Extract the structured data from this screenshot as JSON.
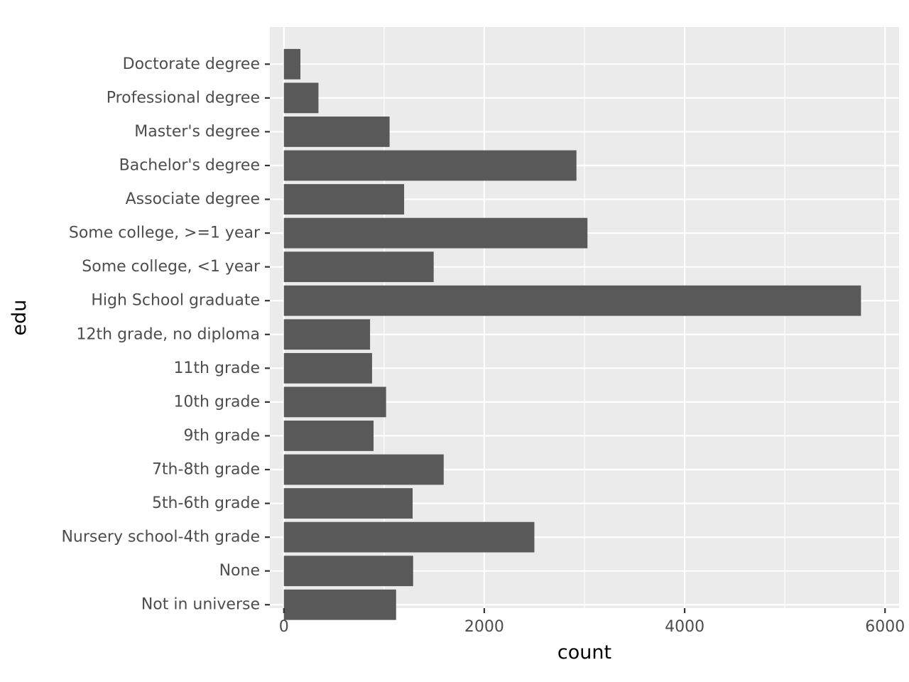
{
  "chart_data": {
    "type": "bar",
    "orientation": "horizontal",
    "title": "",
    "xlabel": "count",
    "ylabel": "edu",
    "xlim": [
      -140,
      6140
    ],
    "xticks": [
      0,
      2000,
      4000,
      6000
    ],
    "xtick_labels": [
      "0",
      "2000",
      "4000",
      "6000"
    ],
    "categories": [
      "Doctorate degree",
      "Professional degree",
      "Master's degree",
      "Bachelor's degree",
      "Associate degree",
      "Some college, >=1 year",
      "Some college, <1 year",
      "High School graduate",
      "12th grade, no diploma",
      "11th grade",
      "10th grade",
      "9th grade",
      "7th-8th grade",
      "5th-6th grade",
      "Nursery school-4th grade",
      "None",
      "Not in universe"
    ],
    "values": [
      165,
      345,
      1055,
      2920,
      1200,
      3030,
      1495,
      5760,
      860,
      880,
      1020,
      895,
      1595,
      1285,
      2500,
      1290,
      1120
    ],
    "grid": true,
    "legend": "none",
    "colors": {
      "bar": "#595959",
      "panel": "#ebebeb",
      "grid": "#ffffff",
      "tick_text": "#4d4d4d",
      "title_text": "#000000"
    }
  }
}
